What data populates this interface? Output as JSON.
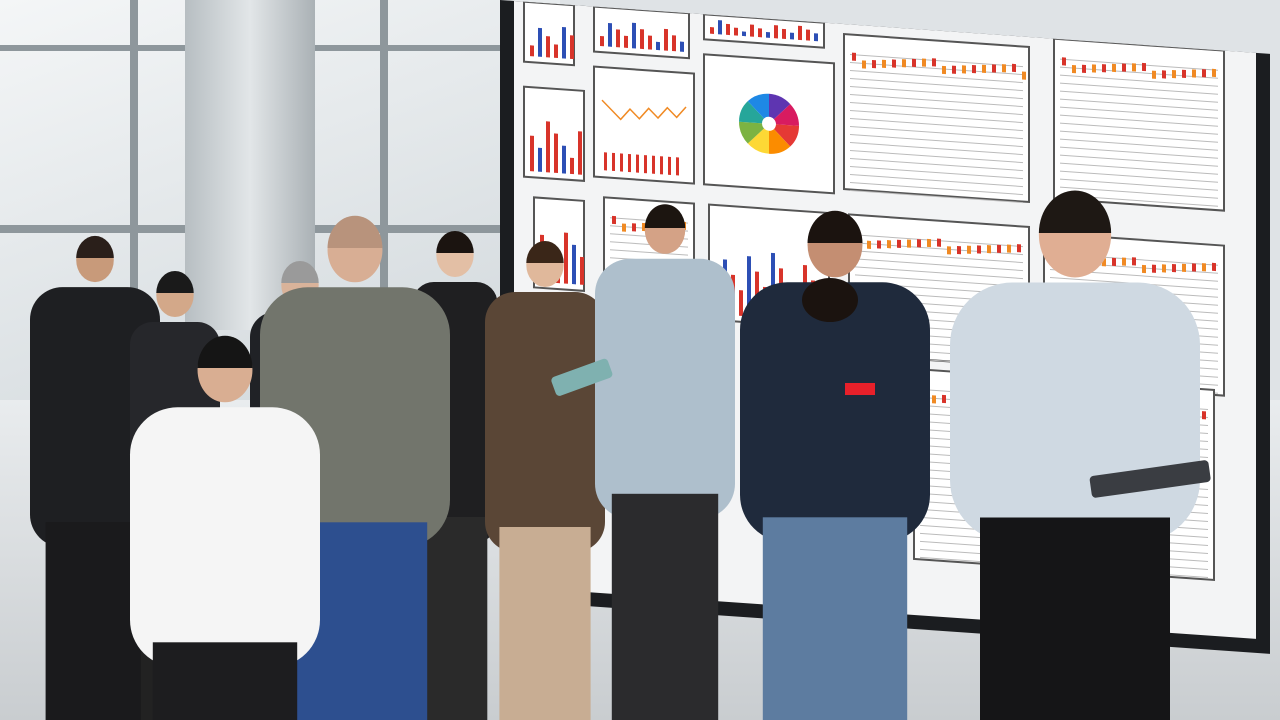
{
  "scene": {
    "description_colors": {
      "board_frame": "#1b1d20",
      "board_screen": "#f3f4f5",
      "chart_red": "#d8342a",
      "chart_blue": "#2d4fb5",
      "chart_orange": "#f08a24"
    },
    "pie_colors": [
      "#e53935",
      "#fb8c00",
      "#fdd835",
      "#7cb342",
      "#26a69a",
      "#1e88e5",
      "#5e35b1",
      "#d81b60"
    ]
  }
}
